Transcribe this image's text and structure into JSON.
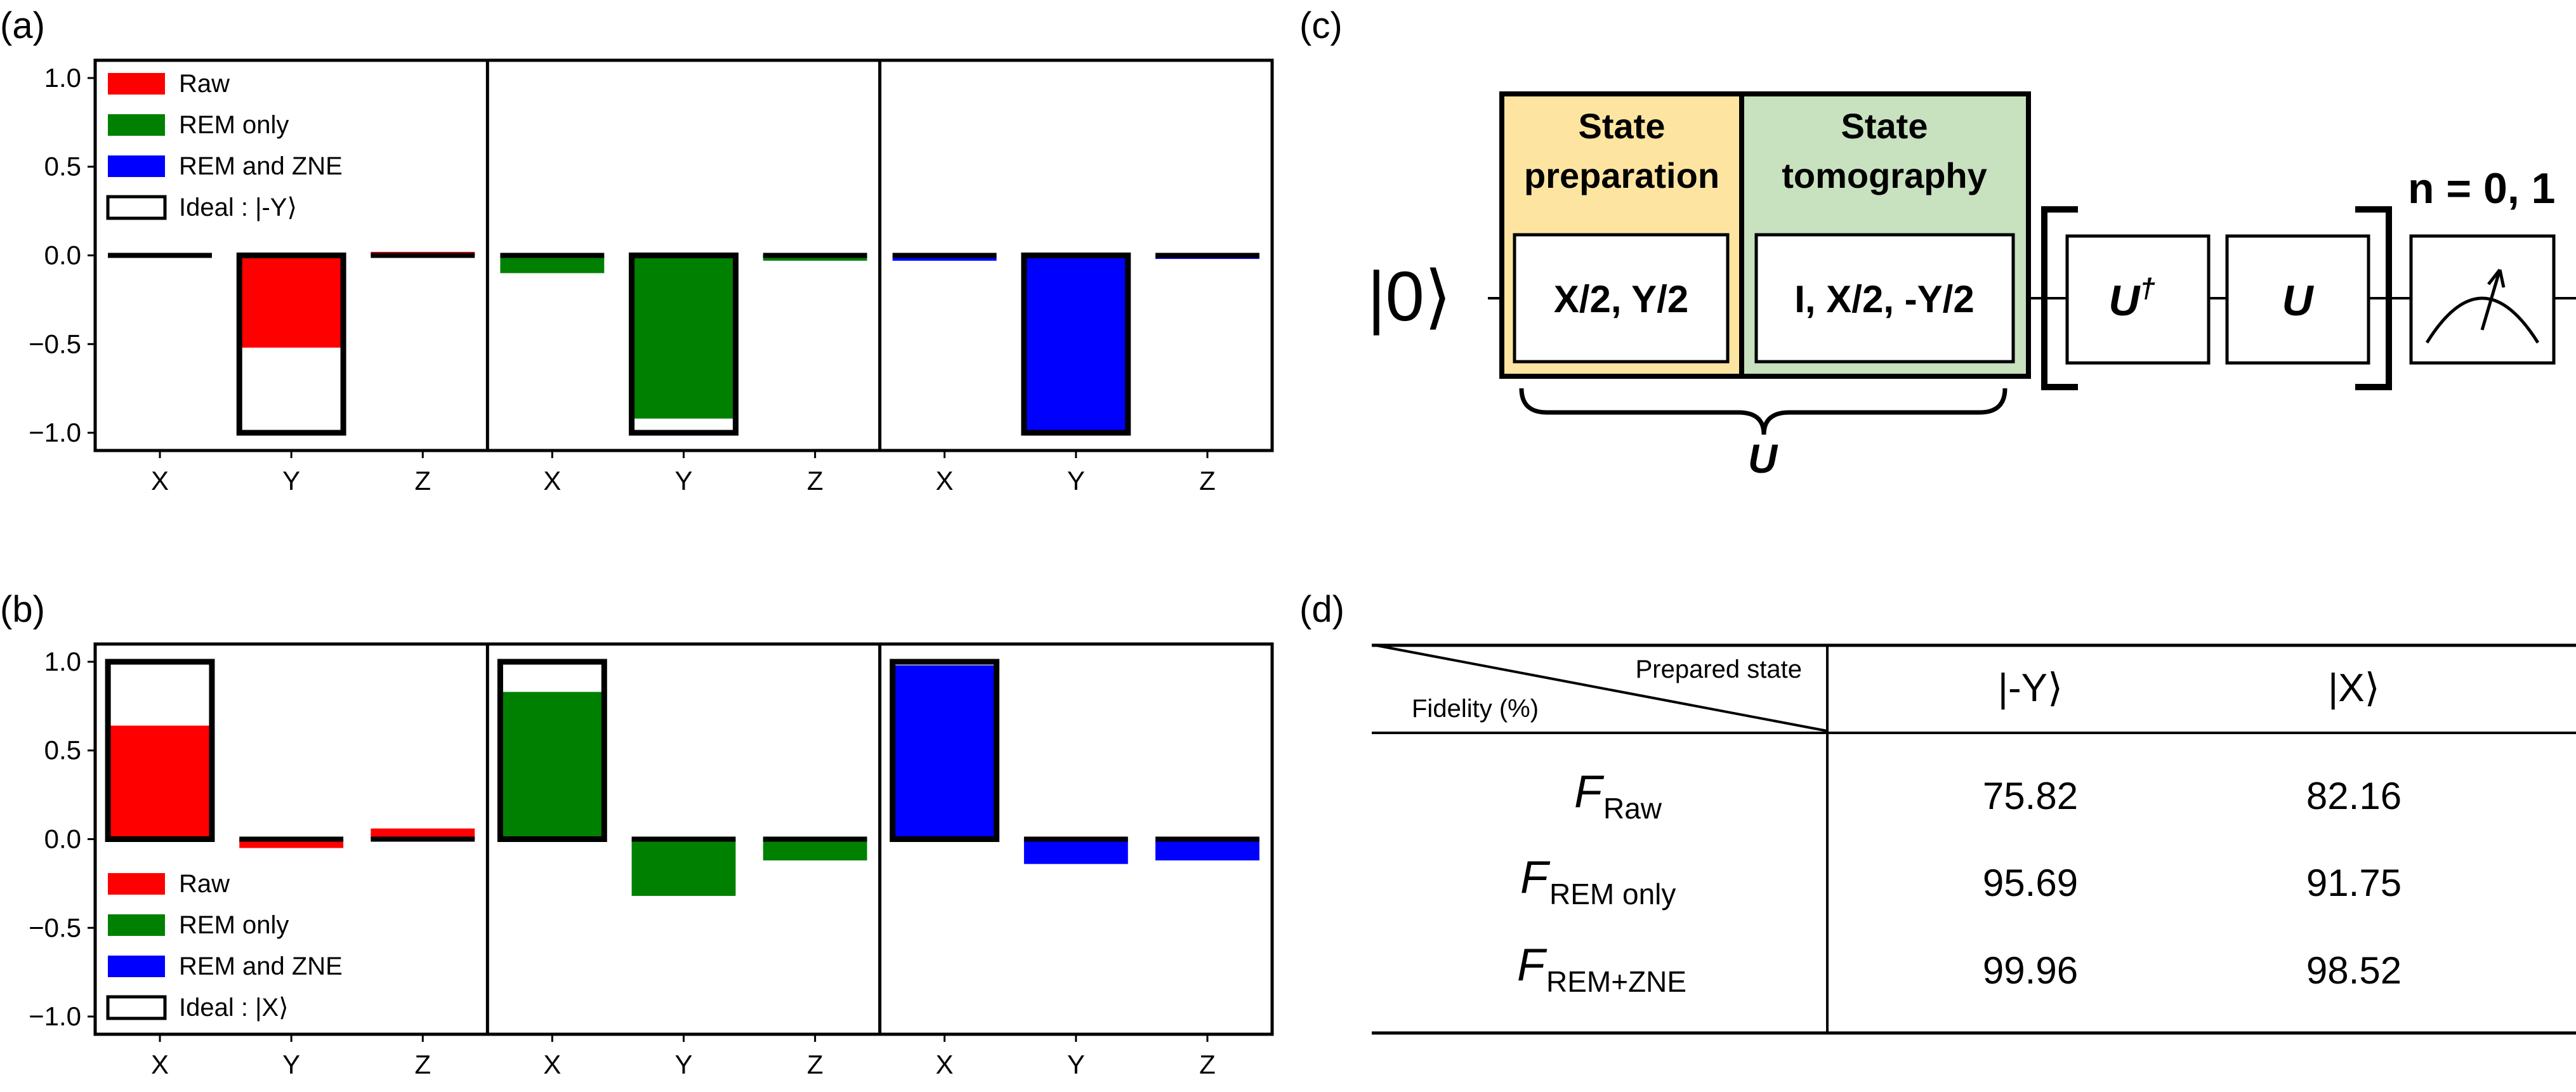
{
  "panels": {
    "a": "(a)",
    "b": "(b)",
    "c": "(c)",
    "d": "(d)"
  },
  "chart_data": [
    {
      "id": "a",
      "type": "bar",
      "categories": [
        "X",
        "Y",
        "Z"
      ],
      "ylim": [
        -1.1,
        1.1
      ],
      "yticks": [
        "1.0",
        "0.5",
        "0.0",
        "−0.5",
        "−1.0"
      ],
      "ytick_values": [
        1.0,
        0.5,
        0.0,
        -0.5,
        -1.0
      ],
      "legend": [
        "Raw",
        "REM only",
        "REM and ZNE",
        "Ideal : |-Y⟩"
      ],
      "legend_position": "upper-left",
      "ideal": [
        0.0,
        -1.0,
        0.0
      ],
      "series": [
        {
          "name": "Raw",
          "color": "#ff0000",
          "values": [
            0.0,
            -0.52,
            0.02
          ]
        },
        {
          "name": "REM only",
          "color": "#008000",
          "values": [
            -0.1,
            -0.92,
            -0.03
          ]
        },
        {
          "name": "REM and ZNE",
          "color": "#0000ff",
          "values": [
            -0.03,
            -1.0,
            -0.02
          ]
        }
      ]
    },
    {
      "id": "b",
      "type": "bar",
      "categories": [
        "X",
        "Y",
        "Z"
      ],
      "ylim": [
        -1.1,
        1.1
      ],
      "yticks": [
        "1.0",
        "0.5",
        "0.0",
        "−0.5",
        "−1.0"
      ],
      "ytick_values": [
        1.0,
        0.5,
        0.0,
        -0.5,
        -1.0
      ],
      "legend": [
        "Raw",
        "REM only",
        "REM and ZNE",
        "Ideal : |X⟩"
      ],
      "legend_position": "lower-left",
      "ideal": [
        1.0,
        0.0,
        0.0
      ],
      "series": [
        {
          "name": "Raw",
          "color": "#ff0000",
          "values": [
            0.64,
            -0.05,
            0.06
          ]
        },
        {
          "name": "REM only",
          "color": "#008000",
          "values": [
            0.83,
            -0.32,
            -0.12
          ]
        },
        {
          "name": "REM and ZNE",
          "color": "#0000ff",
          "values": [
            0.98,
            -0.14,
            -0.12
          ]
        }
      ]
    }
  ],
  "circuit": {
    "input": "|0⟩",
    "prep_title": [
      "State",
      "preparation"
    ],
    "prep_gate": "X/2, Y/2",
    "tomo_title": [
      "State",
      "tomography"
    ],
    "tomo_gate": "I, X/2, -Y/2",
    "u_dagger": "U",
    "u_dagger_sup": "†",
    "u_gate": "U",
    "brace_label": "U",
    "repeat_label": "n = 0, 1",
    "prep_color": "#fde5a1",
    "tomo_color": "#c8e1bf"
  },
  "table": {
    "header_top": "Prepared state",
    "header_bottom": "Fidelity (%)",
    "columns": [
      "|-Y⟩",
      "|X⟩"
    ],
    "rows": [
      {
        "label": "F",
        "sub": "Raw",
        "values": [
          "75.82",
          "82.16"
        ]
      },
      {
        "label": "F",
        "sub": "REM only",
        "values": [
          "95.69",
          "91.75"
        ]
      },
      {
        "label": "F",
        "sub": "REM+ZNE",
        "values": [
          "99.96",
          "98.52"
        ]
      }
    ]
  }
}
